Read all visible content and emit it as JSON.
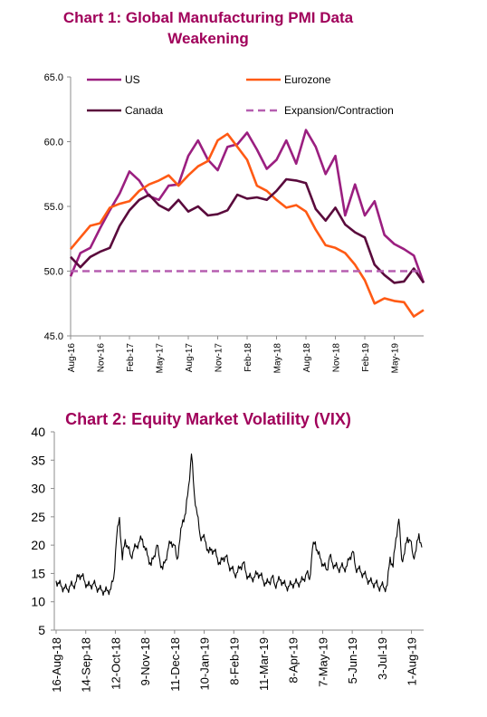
{
  "chart_data": [
    {
      "type": "line",
      "title": "Chart 1: Global Manufacturing PMI Data Weakening",
      "title_lines": [
        "Chart 1: Global Manufacturing PMI Data",
        "Weakening"
      ],
      "x_tick_labels": [
        "Aug-16",
        "Nov-16",
        "Feb-17",
        "May-17",
        "Aug-17",
        "Nov-17",
        "Feb-18",
        "May-18",
        "Aug-18",
        "Nov-18",
        "Feb-19",
        "May-19"
      ],
      "y_tick_labels": [
        "65.0",
        "60.0",
        "55.0",
        "50.0",
        "45.0"
      ],
      "ylim": [
        45,
        65
      ],
      "grid": false,
      "legend_placement": "top",
      "months": [
        "Aug-16",
        "Sep-16",
        "Oct-16",
        "Nov-16",
        "Dec-16",
        "Jan-17",
        "Feb-17",
        "Mar-17",
        "Apr-17",
        "May-17",
        "Jun-17",
        "Jul-17",
        "Aug-17",
        "Sep-17",
        "Oct-17",
        "Nov-17",
        "Dec-17",
        "Jan-18",
        "Feb-18",
        "Mar-18",
        "Apr-18",
        "May-18",
        "Jun-18",
        "Jul-18",
        "Aug-18",
        "Sep-18",
        "Oct-18",
        "Nov-18",
        "Dec-18",
        "Jan-19",
        "Feb-19",
        "Mar-19",
        "Apr-19",
        "May-19",
        "Jun-19",
        "Jul-19",
        "Aug-19"
      ],
      "series": [
        {
          "name": "US",
          "color": "#9b1f80",
          "dash": false,
          "values": [
            49.6,
            51.4,
            51.8,
            53.3,
            54.7,
            56.0,
            57.7,
            57.0,
            55.8,
            55.5,
            56.6,
            56.7,
            58.9,
            60.1,
            58.6,
            57.8,
            59.6,
            59.8,
            60.7,
            59.4,
            57.9,
            58.6,
            60.1,
            58.3,
            60.9,
            59.6,
            57.5,
            58.9,
            54.3,
            56.7,
            54.3,
            55.4,
            52.8,
            52.1,
            51.7,
            51.2,
            49.1
          ]
        },
        {
          "name": "Eurozone",
          "color": "#ff5a14",
          "dash": false,
          "values": [
            51.7,
            52.6,
            53.5,
            53.7,
            54.9,
            55.2,
            55.4,
            56.2,
            56.7,
            57.0,
            57.4,
            56.6,
            57.4,
            58.1,
            58.5,
            60.1,
            60.6,
            59.6,
            58.6,
            56.6,
            56.2,
            55.5,
            54.9,
            55.1,
            54.6,
            53.2,
            52.0,
            51.8,
            51.4,
            50.5,
            49.3,
            47.5,
            47.9,
            47.7,
            47.6,
            46.5,
            47.0
          ]
        },
        {
          "name": "Canada",
          "color": "#5a0a3c",
          "dash": false,
          "values": [
            51.1,
            50.3,
            51.1,
            51.5,
            51.8,
            53.5,
            54.7,
            55.5,
            55.9,
            55.1,
            54.7,
            55.5,
            54.6,
            55.0,
            54.3,
            54.4,
            54.7,
            55.9,
            55.6,
            55.7,
            55.5,
            56.2,
            57.1,
            57.0,
            56.8,
            54.8,
            53.9,
            54.9,
            53.6,
            53.0,
            52.6,
            50.5,
            49.7,
            49.1,
            49.2,
            50.2,
            49.1
          ]
        },
        {
          "name": "Expansion/Contraction",
          "color": "#b65fb0",
          "dash": true,
          "values": [
            50,
            50,
            50,
            50,
            50,
            50,
            50,
            50,
            50,
            50,
            50,
            50,
            50,
            50,
            50,
            50,
            50,
            50,
            50,
            50,
            50,
            50,
            50,
            50,
            50,
            50,
            50,
            50,
            50,
            50,
            50,
            50,
            50,
            50,
            50,
            50,
            50
          ]
        }
      ]
    },
    {
      "type": "line",
      "title": "Chart 2: Equity Market Volatility (VIX)",
      "x_tick_labels": [
        "16-Aug-18",
        "14-Sep-18",
        "12-Oct-18",
        "9-Nov-18",
        "11-Dec-18",
        "10-Jan-19",
        "8-Feb-19",
        "11-Mar-19",
        "8-Apr-19",
        "7-May-19",
        "5-Jun-19",
        "3-Jul-19",
        "1-Aug-19"
      ],
      "y_tick_labels": [
        "40",
        "35",
        "30",
        "25",
        "20",
        "15",
        "10",
        "5"
      ],
      "ylim": [
        5,
        40
      ],
      "grid": false,
      "series": [
        {
          "name": "VIX",
          "color": "#000000",
          "values": [
            13.7,
            13.2,
            12.6,
            12.4,
            12.2,
            12.9,
            12.8,
            13.6,
            14.8,
            14.5,
            13.5,
            12.8,
            12.9,
            13.2,
            12.6,
            12.2,
            12.0,
            11.8,
            12.0,
            12.2,
            14.2,
            21.3,
            24.9,
            17.4,
            21.0,
            19.4,
            18.0,
            19.2,
            19.9,
            20.7,
            21.1,
            19.1,
            17.9,
            16.4,
            18.1,
            20.0,
            17.4,
            15.7,
            17.4,
            19.6,
            20.6,
            20.0,
            17.5,
            21.0,
            24.5,
            25.6,
            30.4,
            36.1,
            29.0,
            25.4,
            21.6,
            21.4,
            20.5,
            18.6,
            19.3,
            18.9,
            17.7,
            16.6,
            17.8,
            18.0,
            16.4,
            15.8,
            14.9,
            15.2,
            16.2,
            16.9,
            15.0,
            14.3,
            14.2,
            14.4,
            15.1,
            14.6,
            13.7,
            13.2,
            13.5,
            14.4,
            12.9,
            13.6,
            13.9,
            13.2,
            12.6,
            12.8,
            13.1,
            13.3,
            13.3,
            13.5,
            14.0,
            15.1,
            13.9,
            19.3,
            20.6,
            18.4,
            17.4,
            16.3,
            15.6,
            18.0,
            16.8,
            16.3,
            15.8,
            16.2,
            15.9,
            16.3,
            17.9,
            18.9,
            16.0,
            15.8,
            15.1,
            14.9,
            14.0,
            13.6,
            13.2,
            13.3,
            12.5,
            12.9,
            12.4,
            12.9,
            17.9,
            16.1,
            21.2,
            24.6,
            17.5,
            18.5,
            21.4,
            20.8,
            18.0,
            19.0,
            22.0,
            19.6
          ]
        }
      ]
    }
  ]
}
